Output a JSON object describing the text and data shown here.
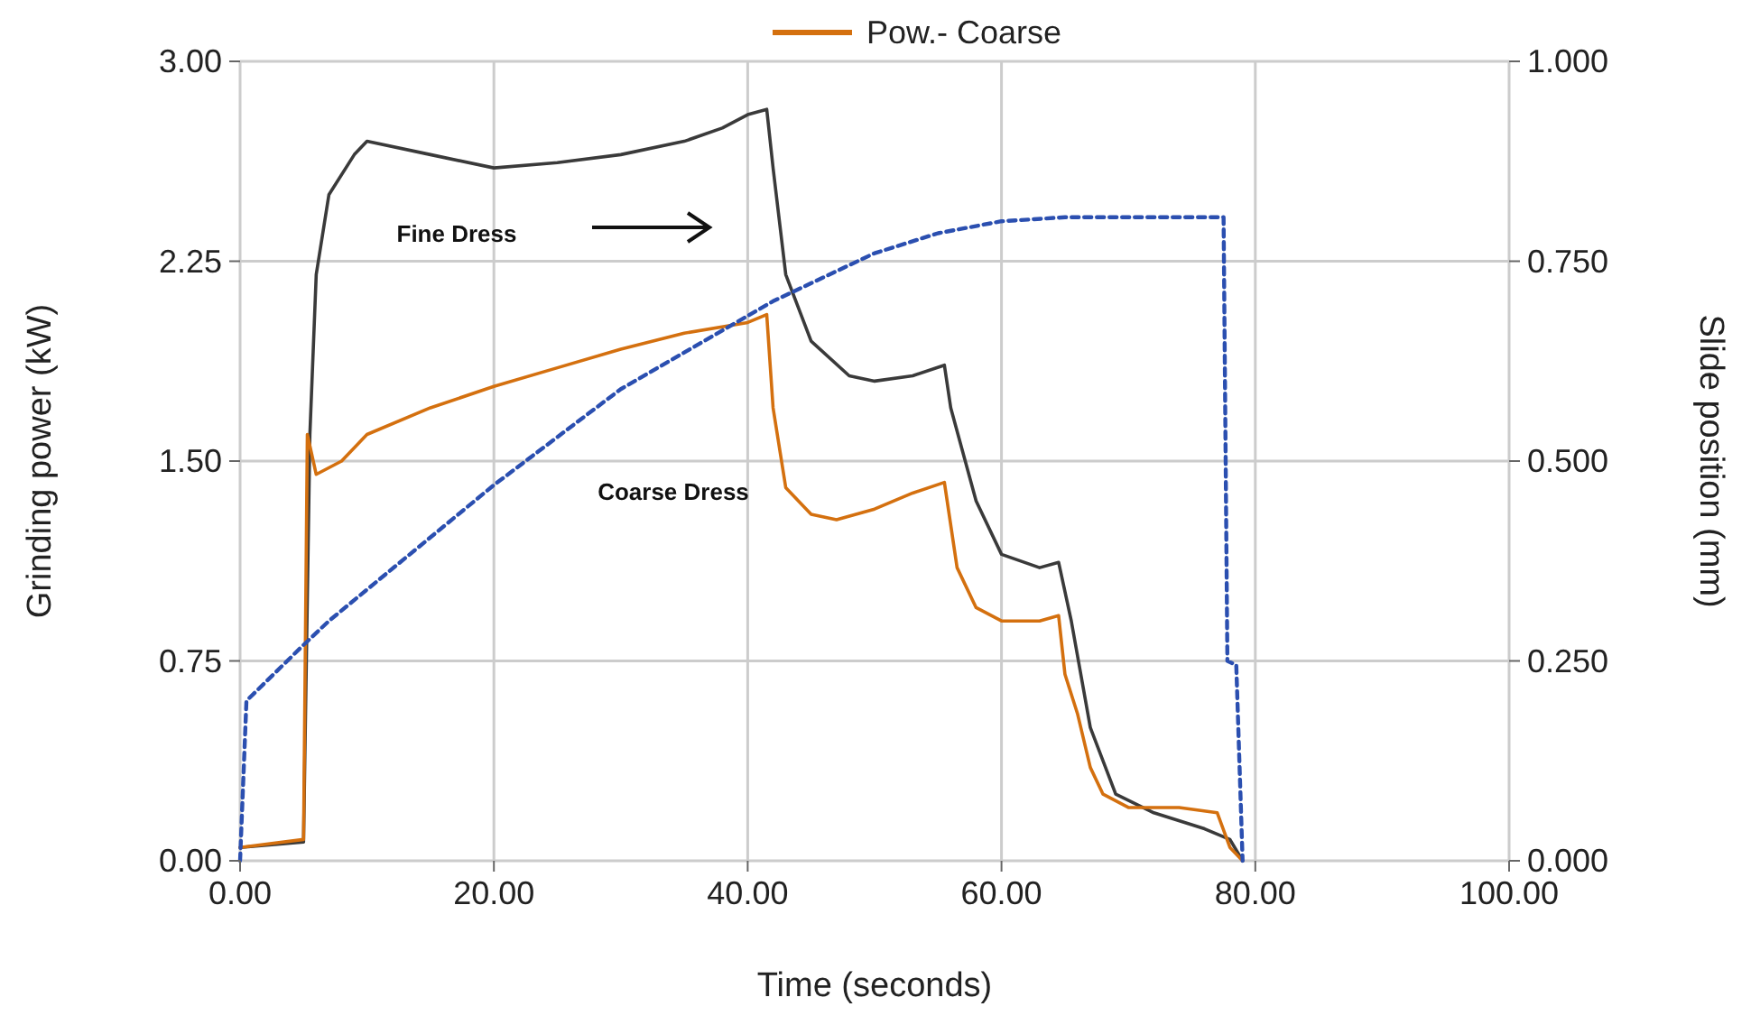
{
  "chart_data": {
    "type": "line",
    "xlabel": "Time (seconds)",
    "ylabel": "Grinding power (kW)",
    "y2label": "Slide position (mm)",
    "xlim": [
      0,
      100
    ],
    "xticks": [
      {
        "value": 0,
        "label": "0.00"
      },
      {
        "value": 20,
        "label": "20.00"
      },
      {
        "value": 40,
        "label": "40.00"
      },
      {
        "value": 60,
        "label": "60.00"
      },
      {
        "value": 80,
        "label": "80.00"
      },
      {
        "value": 100,
        "label": "100.00"
      }
    ],
    "ylim": [
      0,
      3
    ],
    "yticks": [
      {
        "value": 0,
        "label": "0.00"
      },
      {
        "value": 0.75,
        "label": "0.75"
      },
      {
        "value": 1.5,
        "label": "1.50"
      },
      {
        "value": 2.25,
        "label": "2.25"
      },
      {
        "value": 3,
        "label": "3.00"
      }
    ],
    "y2lim": [
      0,
      1
    ],
    "y2ticks": [
      {
        "value": 0,
        "label": "0.000"
      },
      {
        "value": 0.25,
        "label": "0.250"
      },
      {
        "value": 0.5,
        "label": "0.500"
      },
      {
        "value": 0.75,
        "label": "0.750"
      },
      {
        "value": 1,
        "label": "1.000"
      }
    ],
    "grid": true,
    "legend": "top",
    "series": [
      {
        "color": "#3a3a3a",
        "line_style": "solid",
        "x": [
          0,
          5,
          5.5,
          6,
          7,
          9,
          10,
          15,
          20,
          25,
          30,
          35,
          38,
          40,
          41.5,
          42,
          43,
          45,
          48,
          50,
          53,
          55.5,
          56,
          58,
          60,
          63,
          64.5,
          65.5,
          67,
          69,
          72,
          76,
          78,
          79
        ],
        "values": [
          0.05,
          0.07,
          1.6,
          2.2,
          2.5,
          2.65,
          2.7,
          2.65,
          2.6,
          2.62,
          2.65,
          2.7,
          2.75,
          2.8,
          2.82,
          2.6,
          2.2,
          1.95,
          1.82,
          1.8,
          1.82,
          1.86,
          1.7,
          1.35,
          1.15,
          1.1,
          1.12,
          0.9,
          0.5,
          0.25,
          0.18,
          0.12,
          0.08,
          0
        ]
      },
      {
        "name": "Pow.- Coarse",
        "color": "#d4700f",
        "line_style": "solid",
        "x": [
          0,
          5,
          5.3,
          6,
          8,
          10,
          15,
          20,
          25,
          30,
          35,
          40,
          41.5,
          42,
          43,
          45,
          47,
          50,
          53,
          55.5,
          56.5,
          58,
          60,
          63,
          64.5,
          65,
          66,
          67,
          68,
          70,
          74,
          77,
          78,
          79
        ],
        "values": [
          0.05,
          0.08,
          1.6,
          1.45,
          1.5,
          1.6,
          1.7,
          1.78,
          1.85,
          1.92,
          1.98,
          2.02,
          2.05,
          1.7,
          1.4,
          1.3,
          1.28,
          1.32,
          1.38,
          1.42,
          1.1,
          0.95,
          0.9,
          0.9,
          0.92,
          0.7,
          0.55,
          0.35,
          0.25,
          0.2,
          0.2,
          0.18,
          0.05,
          0
        ]
      },
      {
        "color": "#2b4fb0",
        "line_style": "dashed",
        "axis": "y2",
        "x": [
          0,
          0.5,
          5,
          7,
          20,
          30,
          42,
          50,
          55,
          60,
          65,
          77.5,
          77.8,
          78.5,
          79
        ],
        "values": [
          0,
          0.2,
          0.27,
          0.3,
          0.47,
          0.59,
          0.7,
          0.76,
          0.785,
          0.8,
          0.805,
          0.805,
          0.25,
          0.245,
          0
        ]
      }
    ],
    "annotations": [
      "Fine Dress",
      "Coarse Dress"
    ]
  }
}
